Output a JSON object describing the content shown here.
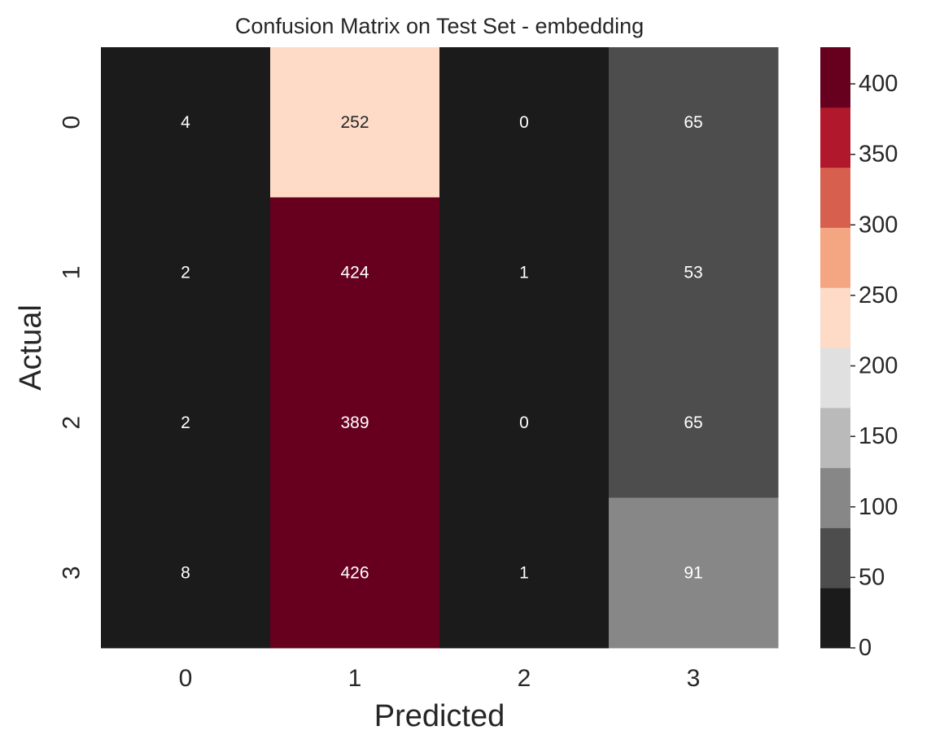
{
  "chart_data": {
    "type": "heatmap",
    "title": "Confusion Matrix on Test Set - embedding",
    "xlabel": "Predicted",
    "ylabel": "Actual",
    "x_categories": [
      "0",
      "1",
      "2",
      "3"
    ],
    "y_categories": [
      "0",
      "1",
      "2",
      "3"
    ],
    "values": [
      [
        4,
        252,
        0,
        65
      ],
      [
        2,
        424,
        1,
        53
      ],
      [
        2,
        389,
        0,
        65
      ],
      [
        8,
        426,
        1,
        91
      ]
    ],
    "colorbar": {
      "range": [
        0,
        426
      ],
      "ticks": [
        "0",
        "50",
        "100",
        "150",
        "200",
        "250",
        "300",
        "350",
        "400"
      ],
      "colors": [
        "#1b1b1b",
        "#4d4d4d",
        "#878787",
        "#bababa",
        "#e0e0e0",
        "#fddbc7",
        "#f4a582",
        "#d6604d",
        "#b2182b",
        "#67001f"
      ],
      "light_text_color": "#ffffff",
      "dark_text_color": "#262626"
    }
  }
}
